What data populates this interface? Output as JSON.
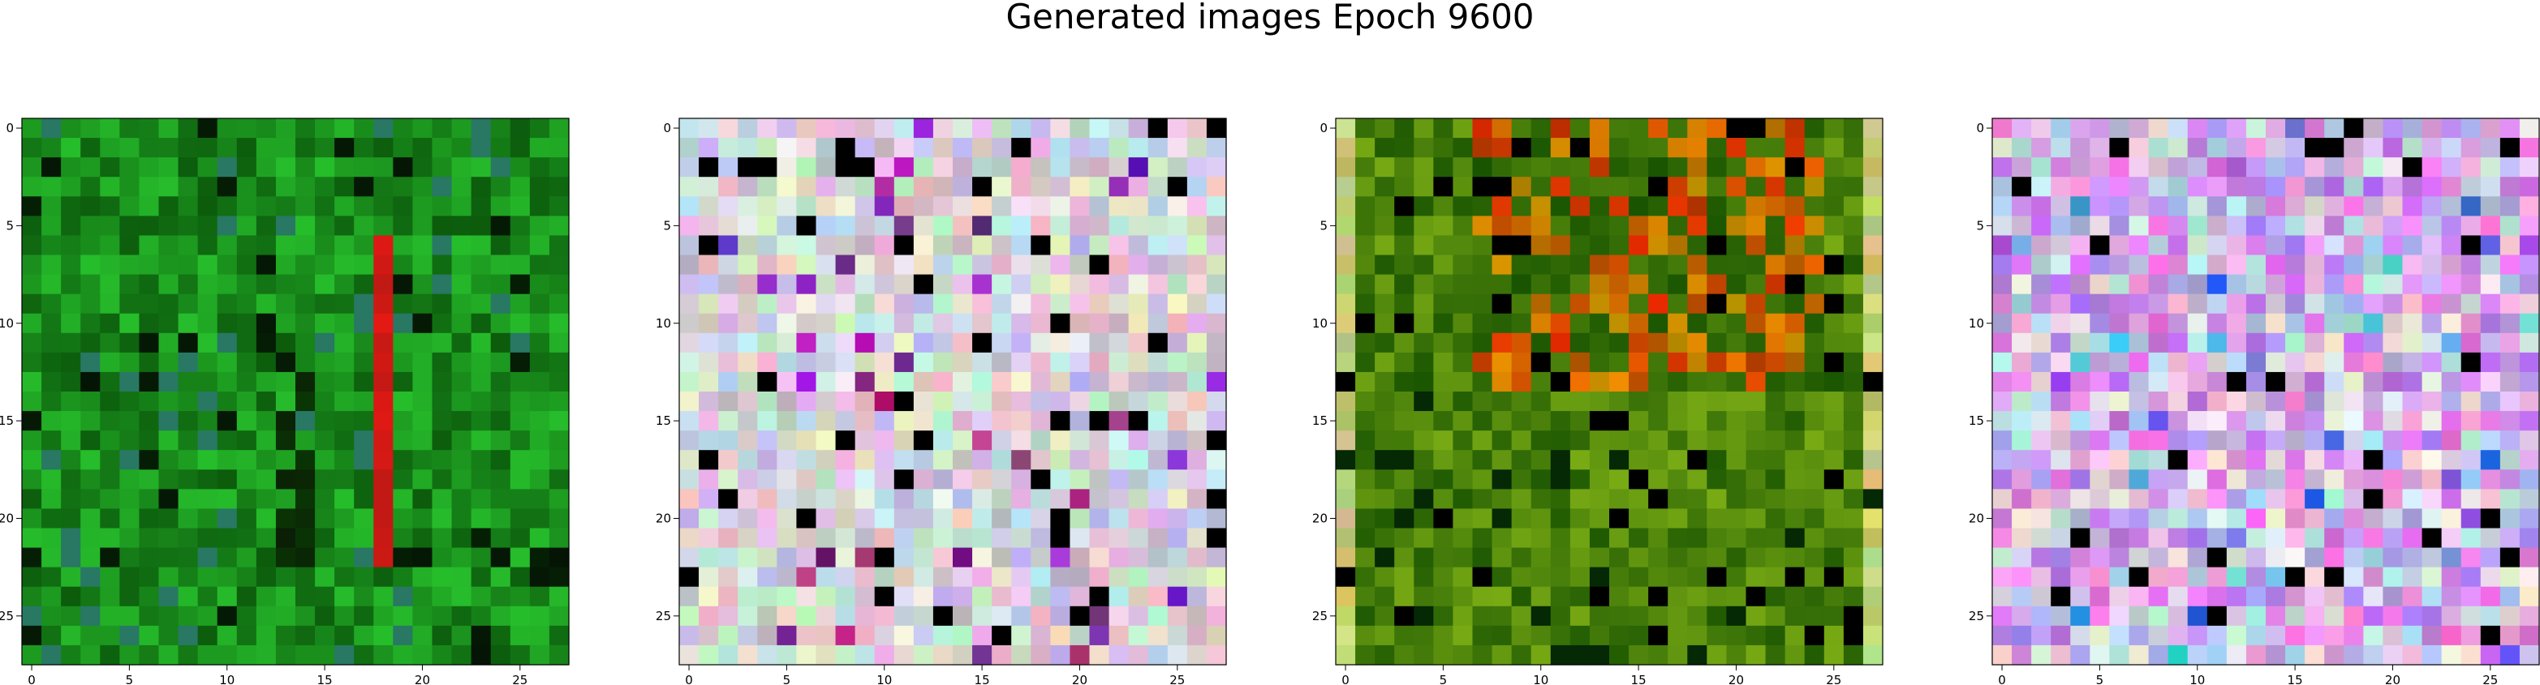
{
  "title": "Generated images Epoch 9600",
  "chart_data": [
    {
      "type": "heatmap",
      "name": "image-1",
      "grid": [
        28,
        28
      ],
      "palette": "green",
      "xticks": [
        "0",
        "5",
        "10",
        "15",
        "20",
        "25"
      ],
      "yticks": [
        "0",
        "5",
        "10",
        "15",
        "20",
        "25"
      ],
      "xlim": [
        -0.5,
        27.5
      ],
      "ylim": [
        27.5,
        -0.5
      ]
    },
    {
      "type": "heatmap",
      "name": "image-2",
      "grid": [
        28,
        28
      ],
      "palette": "pastel",
      "xticks": [
        "0",
        "5",
        "10",
        "15",
        "20",
        "25"
      ],
      "yticks": [
        "0",
        "5",
        "10",
        "15",
        "20",
        "25"
      ],
      "xlim": [
        -0.5,
        27.5
      ],
      "ylim": [
        27.5,
        -0.5
      ]
    },
    {
      "type": "heatmap",
      "name": "image-3",
      "grid": [
        28,
        28
      ],
      "palette": "earth",
      "xticks": [
        "0",
        "5",
        "10",
        "15",
        "20",
        "25"
      ],
      "yticks": [
        "0",
        "5",
        "10",
        "15",
        "20",
        "25"
      ],
      "xlim": [
        -0.5,
        27.5
      ],
      "ylim": [
        27.5,
        -0.5
      ]
    },
    {
      "type": "heatmap",
      "name": "image-4",
      "grid": [
        28,
        28
      ],
      "palette": "violet",
      "xticks": [
        "0",
        "5",
        "10",
        "15",
        "20",
        "25"
      ],
      "yticks": [
        "0",
        "5",
        "10",
        "15",
        "20",
        "25"
      ],
      "xlim": [
        -0.5,
        27.5
      ],
      "ylim": [
        27.5,
        -0.5
      ]
    }
  ]
}
